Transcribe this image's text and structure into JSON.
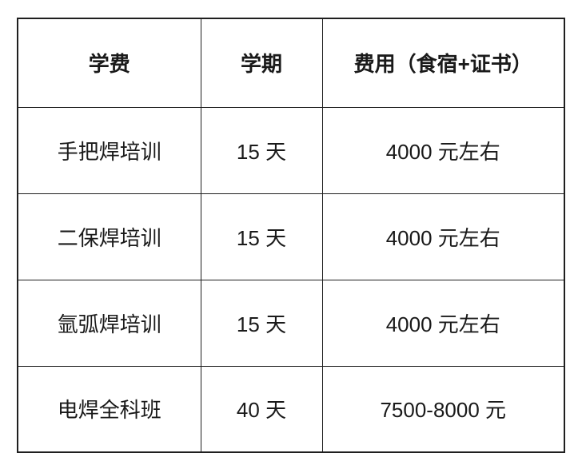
{
  "table": {
    "border_color": "#1f1f1f",
    "text_color": "#1a1a1a",
    "background_color": "#ffffff",
    "columns": [
      {
        "label": "学费"
      },
      {
        "label": "学期"
      },
      {
        "label": "费用（食宿+证书）"
      }
    ],
    "rows": [
      {
        "course": "手把焊培训",
        "term": "15 天",
        "fee": "4000 元左右"
      },
      {
        "course": "二保焊培训",
        "term": "15 天",
        "fee": "4000 元左右"
      },
      {
        "course": "氩弧焊培训",
        "term": "15 天",
        "fee": "4000 元左右"
      },
      {
        "course": "电焊全科班",
        "term": "40 天",
        "fee": "7500-8000 元"
      }
    ]
  }
}
